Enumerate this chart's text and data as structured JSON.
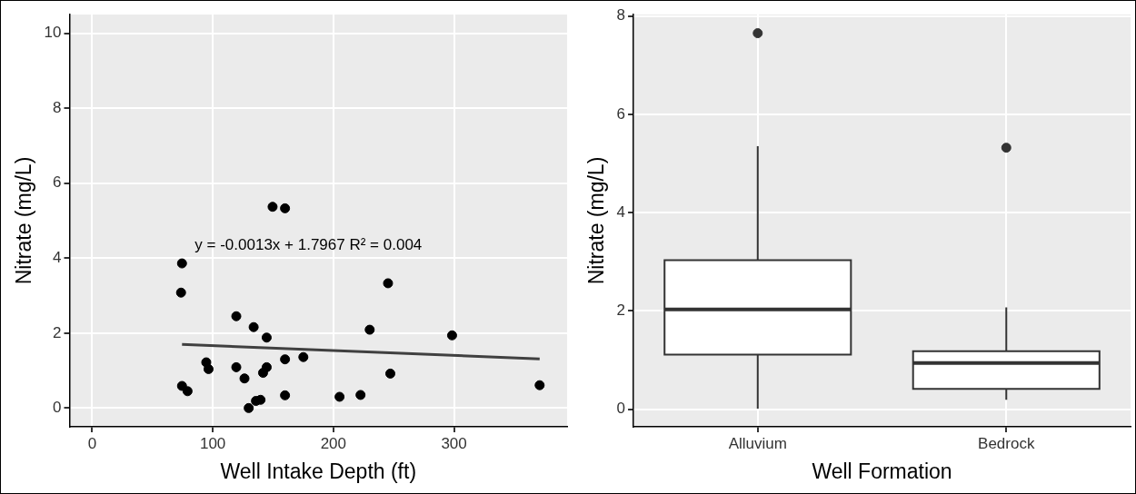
{
  "chart_data": [
    {
      "type": "scatter",
      "xlabel": "Well Intake Depth (ft)",
      "ylabel": "Nitrate (mg/L)",
      "xlim": [
        -18.75,
        393.75
      ],
      "xticks": [
        0,
        100,
        200,
        300
      ],
      "ylim": [
        -0.5,
        10.5
      ],
      "yticks": [
        0,
        2,
        4,
        6,
        8,
        10
      ],
      "grid": true,
      "annotations": [
        "y = -0.0013x + 1.7967 R² = 0.004"
      ],
      "series": [
        {
          "type": "scatter",
          "marker": "circle",
          "color": "#000000",
          "x": [
            74.5,
            73.7,
            119.5,
            133.9,
            144.7,
            149.6,
            159.9,
            245.3,
            230.1,
            298.4,
            94.6,
            96.5,
            119.5,
            159.9,
            175.1,
            144.7,
            141.7,
            126.3,
            247.2,
            74.5,
            79.1,
            129.8,
            135.8,
            139.6,
            159.9,
            205.1,
            222.5,
            371
          ],
          "values": [
            3.86,
            3.08,
            2.45,
            2.16,
            1.88,
            5.37,
            5.33,
            3.33,
            2.09,
            1.94,
            1.22,
            1.04,
            1.09,
            1.3,
            1.36,
            1.09,
            0.94,
            0.79,
            0.92,
            0.59,
            0.45,
            0.0,
            0.19,
            0.22,
            0.34,
            0.3,
            0.35,
            0.61
          ]
        },
        {
          "type": "line",
          "marker": "none",
          "color": "#404040",
          "x": [
            74.5,
            371
          ],
          "values": [
            1.7,
            1.31
          ]
        }
      ]
    },
    {
      "type": "box",
      "xlabel": "Well Formation",
      "ylabel": "Nitrate (mg/L)",
      "categories": [
        "Alluvium",
        "Bedrock"
      ],
      "ylim": [
        -0.36,
        8.03
      ],
      "yticks": [
        0,
        2,
        4,
        6,
        8
      ],
      "grid": true,
      "boxes": [
        {
          "low": 0.01,
          "q1": 1.11,
          "median": 2.03,
          "q3": 3.03,
          "high": 5.35,
          "outliers": [
            7.65
          ]
        },
        {
          "low": 0.19,
          "q1": 0.41,
          "median": 0.94,
          "q3": 1.18,
          "high": 2.07,
          "outliers": [
            5.32
          ]
        }
      ]
    }
  ]
}
